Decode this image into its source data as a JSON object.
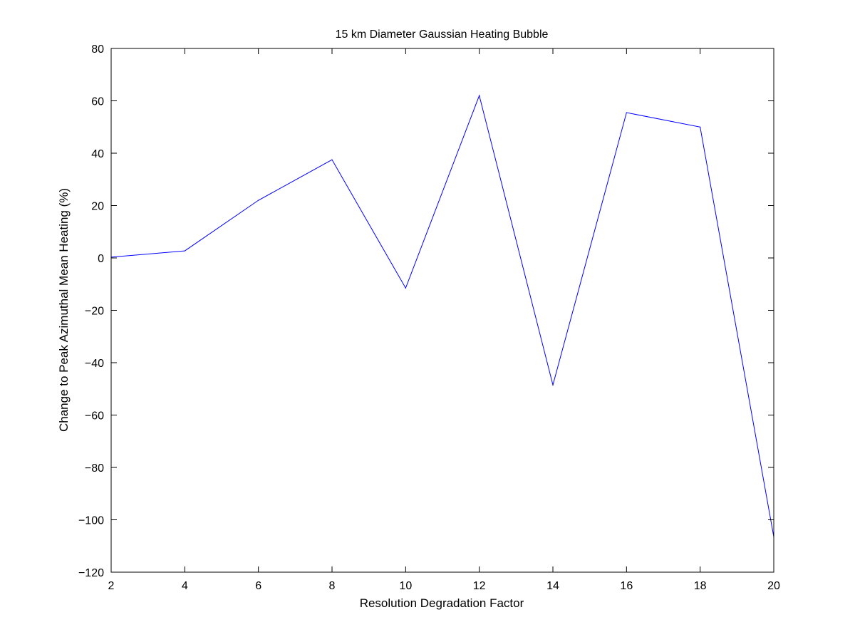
{
  "chart_data": {
    "type": "line",
    "title": "15 km Diameter Gaussian Heating Bubble",
    "xlabel": "Resolution Degradation Factor",
    "ylabel": "Change to Peak Azimuthal Mean Heating (%)",
    "xlim": [
      2,
      20
    ],
    "ylim": [
      -120,
      80
    ],
    "xticks": [
      2,
      4,
      6,
      8,
      10,
      12,
      14,
      16,
      18,
      20
    ],
    "yticks": [
      80,
      60,
      40,
      20,
      0,
      -20,
      -40,
      -60,
      -80,
      -100,
      -120
    ],
    "xtick_labels": [
      "2",
      "4",
      "6",
      "8",
      "10",
      "12",
      "14",
      "16",
      "18",
      "20"
    ],
    "ytick_labels": [
      "80",
      "60",
      "40",
      "20",
      "0",
      "−20",
      "−40",
      "−60",
      "−80",
      "−100",
      "−120"
    ],
    "grid": false,
    "series": [
      {
        "color": "#0000ff",
        "x": [
          2,
          4,
          6,
          8,
          10,
          12,
          14,
          16,
          18,
          20
        ],
        "y": [
          0.3,
          2.7,
          22.0,
          37.5,
          -11.5,
          62.0,
          -48.5,
          55.5,
          50.0,
          -106.5
        ]
      }
    ]
  }
}
